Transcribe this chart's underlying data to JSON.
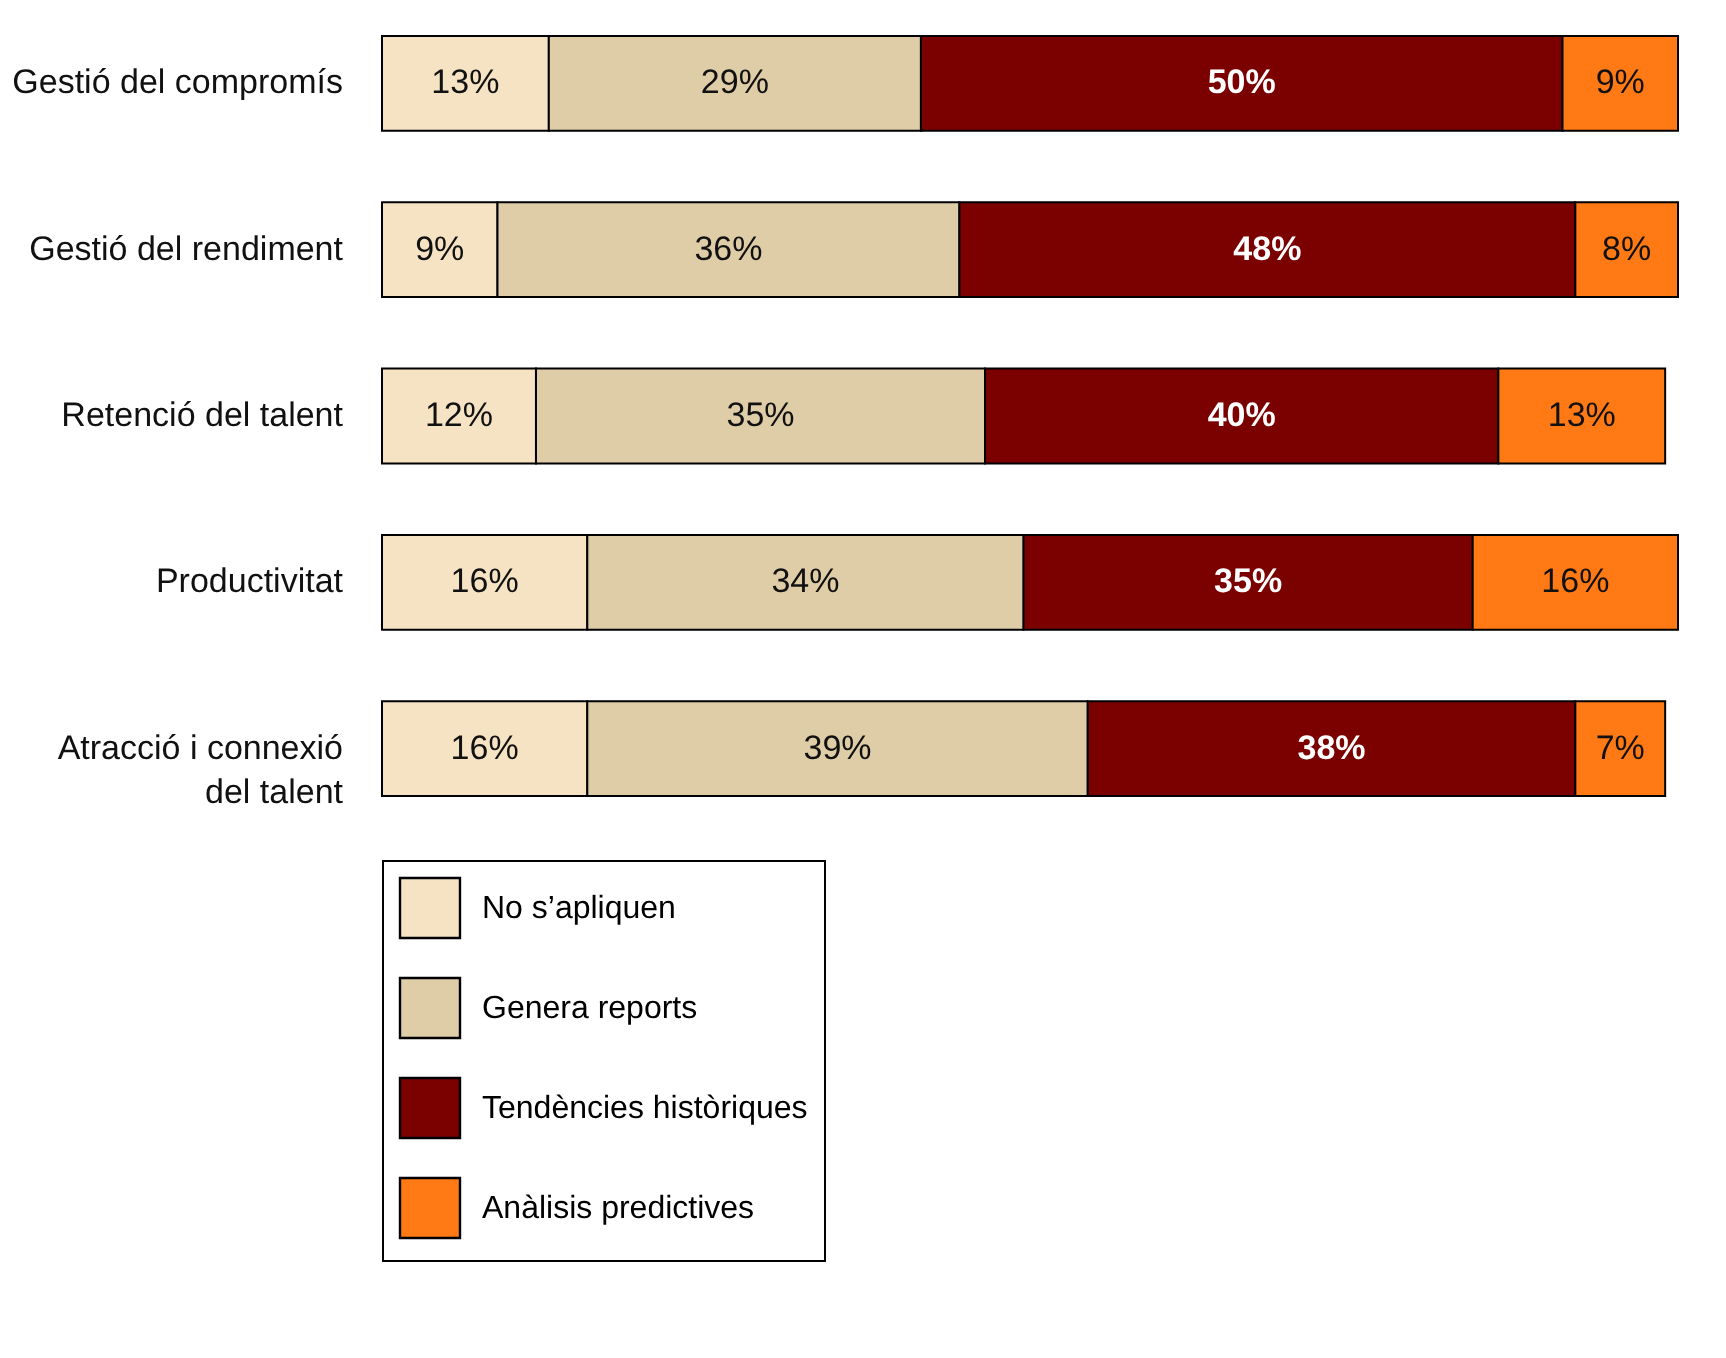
{
  "chart_data": {
    "type": "bar",
    "orientation": "horizontal",
    "stacked": true,
    "categories": [
      "Gestió del compromís",
      "Gestió del rendiment",
      "Retenció del talent",
      "Productivitat",
      "Atracció i connexió del talent"
    ],
    "series": [
      {
        "name": "No s’apliquen",
        "color": "#f5e3c4",
        "values": [
          13,
          9,
          12,
          16,
          16
        ],
        "value_labels": [
          "13%",
          "9%",
          "12%",
          "16%",
          "16%"
        ]
      },
      {
        "name": "Genera reports",
        "color": "#dfcda8",
        "values": [
          29,
          36,
          35,
          34,
          39
        ],
        "value_labels": [
          "29%",
          "36%",
          "35%",
          "34%",
          "39%"
        ]
      },
      {
        "name": "Tendències històriques",
        "color": "#7b0000",
        "values": [
          50,
          48,
          40,
          35,
          38
        ],
        "value_labels": [
          "50%",
          "48%",
          "40%",
          "35%",
          "38%"
        ]
      },
      {
        "name": "Anàlisis predictives",
        "color": "#ff7a14",
        "values": [
          9,
          8,
          13,
          16,
          7
        ],
        "value_labels": [
          "9%",
          "8%",
          "13%",
          "16%",
          "7%"
        ]
      }
    ],
    "xlim": [
      0,
      101
    ],
    "tick_labels": "y",
    "legend": "bottom"
  }
}
